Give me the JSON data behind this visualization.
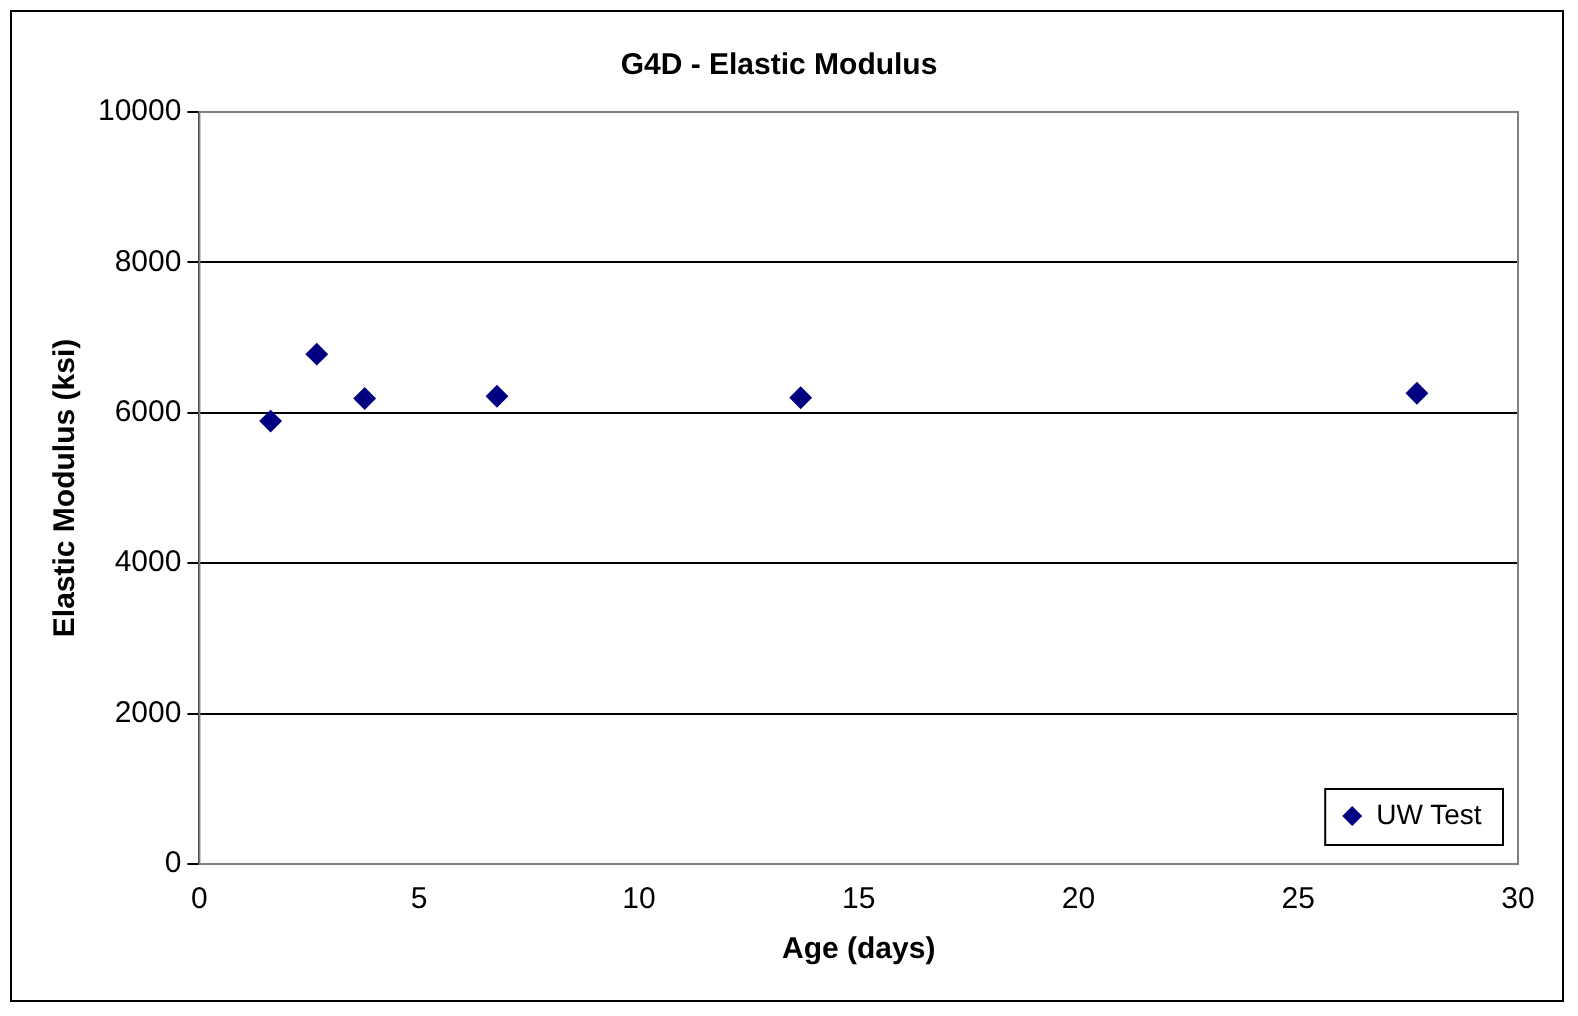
{
  "chart_data": {
    "type": "scatter",
    "title": "G4D - Elastic Modulus",
    "xlabel": "Age (days)",
    "ylabel": "Elastic Modulus (ksi)",
    "series": [
      {
        "name": "UW Test",
        "color": "#000080",
        "x": [
          1.62,
          2.67,
          3.76,
          6.77,
          13.68,
          27.7
        ],
        "values": [
          5890,
          6780,
          6190,
          6220,
          6200,
          6260
        ]
      }
    ],
    "xlim": [
      0,
      30
    ],
    "xticks": [
      0,
      5,
      10,
      15,
      20,
      25,
      30
    ],
    "ylim": [
      0,
      10000
    ],
    "yticks": [
      0,
      2000,
      4000,
      6000,
      8000,
      10000
    ],
    "grid": "y",
    "legend": "bottom right",
    "marker": "diamond"
  }
}
